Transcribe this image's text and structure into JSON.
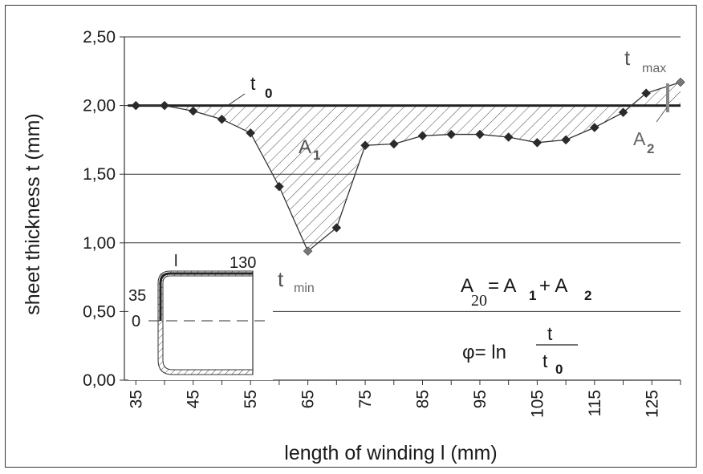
{
  "chart_data": {
    "type": "line",
    "title": "",
    "xlabel": "length of winding l (mm)",
    "ylabel": "sheet thickness t (mm)",
    "xlim": [
      33,
      130
    ],
    "ylim": [
      0,
      2.5
    ],
    "x_ticks": [
      "35",
      "45",
      "55",
      "65",
      "75",
      "85",
      "95",
      "105",
      "115",
      "125"
    ],
    "x_tick_values": [
      35,
      45,
      55,
      65,
      75,
      85,
      95,
      105,
      115,
      125
    ],
    "y_ticks": [
      "0,00",
      "0,50",
      "1,00",
      "1,50",
      "2,00",
      "2,50"
    ],
    "y_tick_values": [
      0,
      0.5,
      1.0,
      1.5,
      2.0,
      2.5
    ],
    "grid": "horizontal",
    "reference_line": {
      "label": "t",
      "subscript": "0",
      "value": 2.0
    },
    "series": [
      {
        "x": [
          35,
          40,
          45,
          50,
          55,
          60,
          65,
          70,
          75,
          80,
          85,
          90,
          95,
          100,
          105,
          110,
          115,
          120,
          124,
          130
        ],
        "y": [
          2.0,
          2.0,
          1.96,
          1.9,
          1.8,
          1.41,
          0.94,
          1.11,
          1.71,
          1.72,
          1.78,
          1.79,
          1.79,
          1.77,
          1.73,
          1.75,
          1.84,
          1.95,
          2.09,
          2.17
        ],
        "color": "#333333"
      }
    ],
    "annotations": {
      "t0": {
        "main": "t",
        "sub": "0"
      },
      "tmax": {
        "main": "t",
        "sub": "max"
      },
      "tmin": {
        "main": "t",
        "sub": "min"
      },
      "a1": {
        "main": "A",
        "sub": "1"
      },
      "a2": {
        "main": "A",
        "sub": "2"
      },
      "eq_area": {
        "lhs": "A",
        "lhs_sub": "20",
        "eq": "= A",
        "r1_sub": "1",
        "plus": "+ A",
        "r2_sub": "2"
      },
      "eq_phi": {
        "lhs": "φ= ln",
        "num": "t",
        "den": "t",
        "den_sub": "0"
      }
    },
    "inset": {
      "label_l": "l",
      "label_130": "130",
      "label_35": "35",
      "label_0": "0"
    }
  }
}
